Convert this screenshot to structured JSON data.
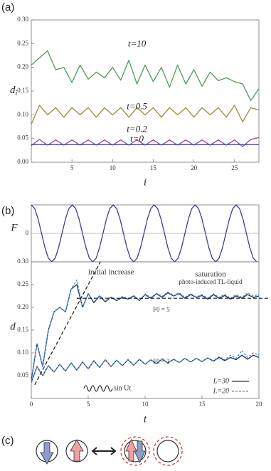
{
  "chart_data": [
    {
      "type": "line",
      "label": "(a)",
      "x_label": "i",
      "y_label": [
        "d",
        "i"
      ],
      "x": [
        0,
        1,
        2,
        3,
        4,
        5,
        6,
        7,
        8,
        9,
        10,
        11,
        12,
        13,
        14,
        15,
        16,
        17,
        18,
        19,
        20,
        21,
        22,
        23,
        24,
        25,
        26,
        27,
        28
      ],
      "xlim": [
        0,
        28
      ],
      "ylim": [
        0,
        0.3
      ],
      "xticks": [
        5,
        10,
        15,
        20,
        25
      ],
      "yticks": [
        {
          "value": 0,
          "label": "0.00"
        },
        {
          "value": 0.05,
          "label": "0.05"
        },
        {
          "value": 0.1,
          "label": "0.10"
        },
        {
          "value": 0.15,
          "label": "0.15"
        },
        {
          "value": 0.2,
          "label": "0.20"
        },
        {
          "value": 0.25,
          "label": "0.25"
        },
        {
          "value": 0.3,
          "label": "0.30"
        }
      ],
      "grid": false,
      "series": [
        {
          "name": "t=10",
          "color": "#4f9a58",
          "values": [
            0.205,
            0.22,
            0.235,
            0.195,
            0.2,
            0.168,
            0.205,
            0.175,
            0.19,
            0.178,
            0.2,
            0.173,
            0.215,
            0.165,
            0.205,
            0.17,
            0.2,
            0.158,
            0.205,
            0.165,
            0.195,
            0.16,
            0.19,
            0.172,
            0.178,
            0.17,
            0.165,
            0.13,
            0.155
          ]
        },
        {
          "name": "t=0.5",
          "color": "#9c8a3c",
          "values": [
            0.08,
            0.12,
            0.1,
            0.115,
            0.095,
            0.115,
            0.1,
            0.115,
            0.095,
            0.115,
            0.1,
            0.115,
            0.095,
            0.115,
            0.1,
            0.115,
            0.095,
            0.115,
            0.1,
            0.115,
            0.095,
            0.115,
            0.1,
            0.115,
            0.095,
            0.12,
            0.085,
            0.115,
            0.11
          ]
        },
        {
          "name": "t=0.2",
          "color": "#a0408e",
          "values": [
            0.035,
            0.048,
            0.036,
            0.047,
            0.036,
            0.047,
            0.036,
            0.047,
            0.036,
            0.047,
            0.036,
            0.047,
            0.036,
            0.047,
            0.036,
            0.047,
            0.036,
            0.047,
            0.036,
            0.047,
            0.036,
            0.047,
            0.036,
            0.047,
            0.036,
            0.047,
            0.033,
            0.048,
            0.052
          ]
        },
        {
          "name": "t=0",
          "color": "#4a4fa6",
          "values": [
            0.037,
            0.037,
            0.037,
            0.037,
            0.037,
            0.037,
            0.037,
            0.037,
            0.037,
            0.037,
            0.037,
            0.037,
            0.037,
            0.037,
            0.037,
            0.037,
            0.037,
            0.037,
            0.037,
            0.037,
            0.037,
            0.037,
            0.037,
            0.037,
            0.037,
            0.037,
            0.037,
            0.037,
            0.037
          ]
        }
      ]
    },
    {
      "type": "line",
      "label": "(b)",
      "y_label": "F",
      "x": [
        0,
        0.3,
        0.6,
        0.9,
        1.2,
        1.5,
        1.8,
        2.1,
        2.4,
        2.7,
        3,
        3.3,
        3.6,
        3.9,
        4.2,
        4.5,
        4.8,
        5.1,
        5.4,
        5.7,
        6,
        6.3,
        6.6,
        6.9,
        7.2,
        7.5,
        7.8,
        8.1,
        8.4,
        8.7,
        9,
        9.3,
        9.6,
        9.9,
        10.2,
        10.5,
        10.8,
        11.1,
        11.4,
        11.7,
        12,
        12.3,
        12.6,
        12.9,
        13.2,
        13.5,
        13.8,
        14.1,
        14.4,
        14.7,
        15,
        15.3,
        15.6,
        15.9,
        16.2,
        16.5,
        16.8,
        17.1,
        17.4,
        17.7,
        18,
        18.3,
        18.6,
        18.9,
        19.2,
        19.5,
        19.8
      ],
      "xlim": [
        0,
        20
      ],
      "ylim": [
        -1,
        1
      ],
      "yticks": [
        0
      ],
      "grid": true,
      "series": [
        {
          "name": "F",
          "color": "#3a3f8f",
          "values": [
            1,
            0.87,
            0.5,
            0,
            -0.5,
            -0.87,
            -1,
            -0.87,
            -0.5,
            0,
            0.5,
            0.87,
            1,
            0.87,
            0.5,
            0,
            -0.5,
            -0.87,
            -1,
            -0.87,
            -0.5,
            0,
            0.5,
            0.87,
            1,
            0.87,
            0.5,
            0,
            -0.5,
            -0.87,
            -1,
            -0.87,
            -0.5,
            0,
            0.5,
            0.87,
            1,
            0.87,
            0.5,
            0,
            -0.5,
            -0.87,
            -1,
            -0.87,
            -0.5,
            0,
            0.5,
            0.87,
            1,
            0.87,
            0.5,
            0,
            -0.5,
            -0.87,
            -1,
            -0.87,
            -0.5,
            0,
            0.5,
            0.87,
            1,
            0.87,
            0.5,
            0,
            -0.5,
            -0.87,
            -1
          ]
        }
      ]
    },
    {
      "type": "line",
      "x_label": "t",
      "y_label": "d",
      "x": [
        0,
        0.5,
        1,
        1.5,
        2,
        2.5,
        3,
        3.5,
        4,
        4.5,
        5,
        5.5,
        6,
        6.5,
        7,
        7.5,
        8,
        8.5,
        9,
        9.5,
        10,
        10.5,
        11,
        11.5,
        12,
        12.5,
        13,
        13.5,
        14,
        14.5,
        15,
        15.5,
        16,
        16.5,
        17,
        17.5,
        18,
        18.5,
        19,
        19.5,
        20
      ],
      "xlim": [
        0,
        20
      ],
      "ylim": [
        0,
        0.3
      ],
      "xticks": [
        0,
        5,
        10,
        15,
        20
      ],
      "yticks": [
        {
          "value": 0.05,
          "label": "0.05"
        },
        {
          "value": 0.1,
          "label": "0.10"
        },
        {
          "value": 0.15,
          "label": "0.15"
        },
        {
          "value": 0.2,
          "label": "0.20"
        },
        {
          "value": 0.25,
          "label": "0.25"
        },
        {
          "value": 0.3,
          "label": "0.30"
        }
      ],
      "grid": false,
      "series": [
        {
          "name": "L=30",
          "color": "#1f2d66",
          "dash": false,
          "values": [
            0.04,
            0.12,
            0.07,
            0.15,
            0.19,
            0.2,
            0.19,
            0.24,
            0.25,
            0.2,
            0.23,
            0.21,
            0.225,
            0.212,
            0.222,
            0.215,
            0.222,
            0.218,
            0.225,
            0.215,
            0.228,
            0.22,
            0.23,
            0.222,
            0.232,
            0.225,
            0.23,
            0.22,
            0.228,
            0.222,
            0.226,
            0.218,
            0.228,
            0.22,
            0.226,
            0.218,
            0.225,
            0.22,
            0.228,
            0.222,
            0.225
          ]
        },
        {
          "name": "L=20",
          "color": "#4b8fd4",
          "dash": true,
          "values": [
            0.04,
            0.12,
            0.07,
            0.15,
            0.19,
            0.2,
            0.19,
            0.24,
            0.26,
            0.2,
            0.23,
            0.212,
            0.226,
            0.214,
            0.223,
            0.216,
            0.224,
            0.219,
            0.226,
            0.216,
            0.229,
            0.222,
            0.231,
            0.224,
            0.234,
            0.226,
            0.232,
            0.222,
            0.23,
            0.223,
            0.228,
            0.22,
            0.23,
            0.222,
            0.229,
            0.22,
            0.228,
            0.222,
            0.232,
            0.225,
            0.228
          ]
        },
        {
          "name": "L=30",
          "color": "#1f2d66",
          "dash": false,
          "values": [
            0.035,
            0.07,
            0.05,
            0.072,
            0.058,
            0.075,
            0.06,
            0.078,
            0.062,
            0.08,
            0.065,
            0.083,
            0.068,
            0.085,
            0.07,
            0.084,
            0.072,
            0.085,
            0.073,
            0.086,
            0.075,
            0.085,
            0.076,
            0.087,
            0.078,
            0.086,
            0.079,
            0.088,
            0.08,
            0.088,
            0.081,
            0.089,
            0.082,
            0.09,
            0.083,
            0.09,
            0.085,
            0.095,
            0.086,
            0.095,
            0.09
          ]
        },
        {
          "name": "L=20",
          "color": "#4b8fd4",
          "dash": true,
          "values": [
            0.035,
            0.07,
            0.05,
            0.072,
            0.058,
            0.075,
            0.06,
            0.078,
            0.062,
            0.08,
            0.065,
            0.083,
            0.068,
            0.085,
            0.07,
            0.084,
            0.072,
            0.085,
            0.073,
            0.086,
            0.075,
            0.085,
            0.076,
            0.087,
            0.078,
            0.086,
            0.079,
            0.088,
            0.08,
            0.088,
            0.081,
            0.089,
            0.083,
            0.092,
            0.085,
            0.095,
            0.088,
            0.105,
            0.09,
            0.1,
            0.095
          ]
        }
      ],
      "trend_lines": [
        {
          "x": [
            0.3,
            5.2
          ],
          "y": [
            0.03,
            0.3
          ]
        },
        {
          "x": [
            4,
            20
          ],
          "y": [
            0.22,
            0.22
          ]
        }
      ],
      "annotations": [
        "initial increase",
        "saturation",
        "photo-induced TL-liquid",
        "F0 = 5",
        "F0 = 2",
        "sin Ut"
      ]
    }
  ],
  "panel_c": {
    "label": "(c)"
  }
}
